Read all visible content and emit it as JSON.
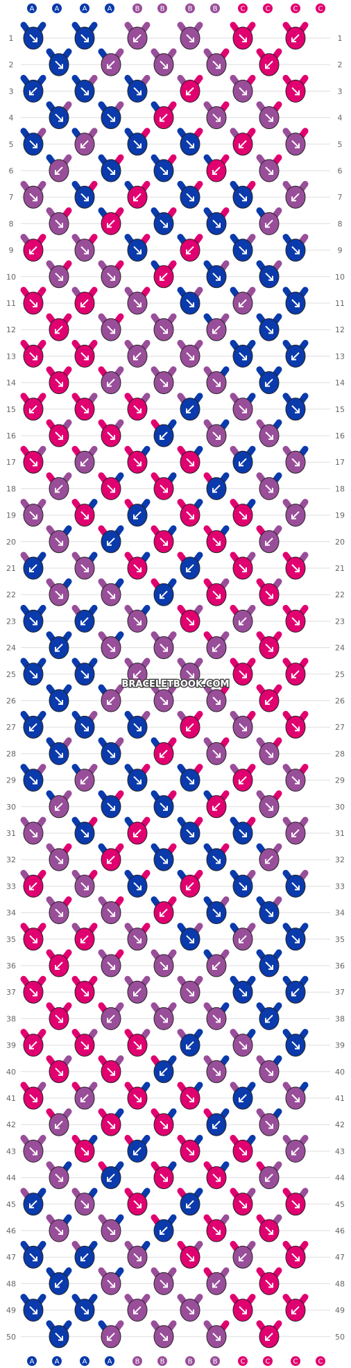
{
  "watermark": "BRACELETBOOK.COM",
  "colors": {
    "A": "#0a3aab",
    "B": "#994e99",
    "C": "#e0006f"
  },
  "top_labels": [
    "A",
    "A",
    "A",
    "A",
    "B",
    "B",
    "B",
    "B",
    "C",
    "C",
    "C",
    "C"
  ],
  "bottom_labels": [
    "A",
    "A",
    "A",
    "A",
    "B",
    "B",
    "B",
    "B",
    "C",
    "C",
    "C",
    "C"
  ],
  "row_numbers": [
    "1",
    "2",
    "3",
    "4",
    "5",
    "6",
    "7",
    "8",
    "9",
    "10",
    "11",
    "12",
    "13",
    "14",
    "15",
    "16",
    "17",
    "18",
    "19",
    "20",
    "21",
    "22",
    "23",
    "24",
    "25",
    "26",
    "27",
    "28",
    "29",
    "30",
    "31",
    "32",
    "33",
    "34",
    "35",
    "36",
    "37",
    "38",
    "39",
    "40",
    "41",
    "42",
    "43",
    "44",
    "45",
    "46",
    "47",
    "48",
    "49",
    "50"
  ],
  "knot_icon": "arrow-icon"
}
